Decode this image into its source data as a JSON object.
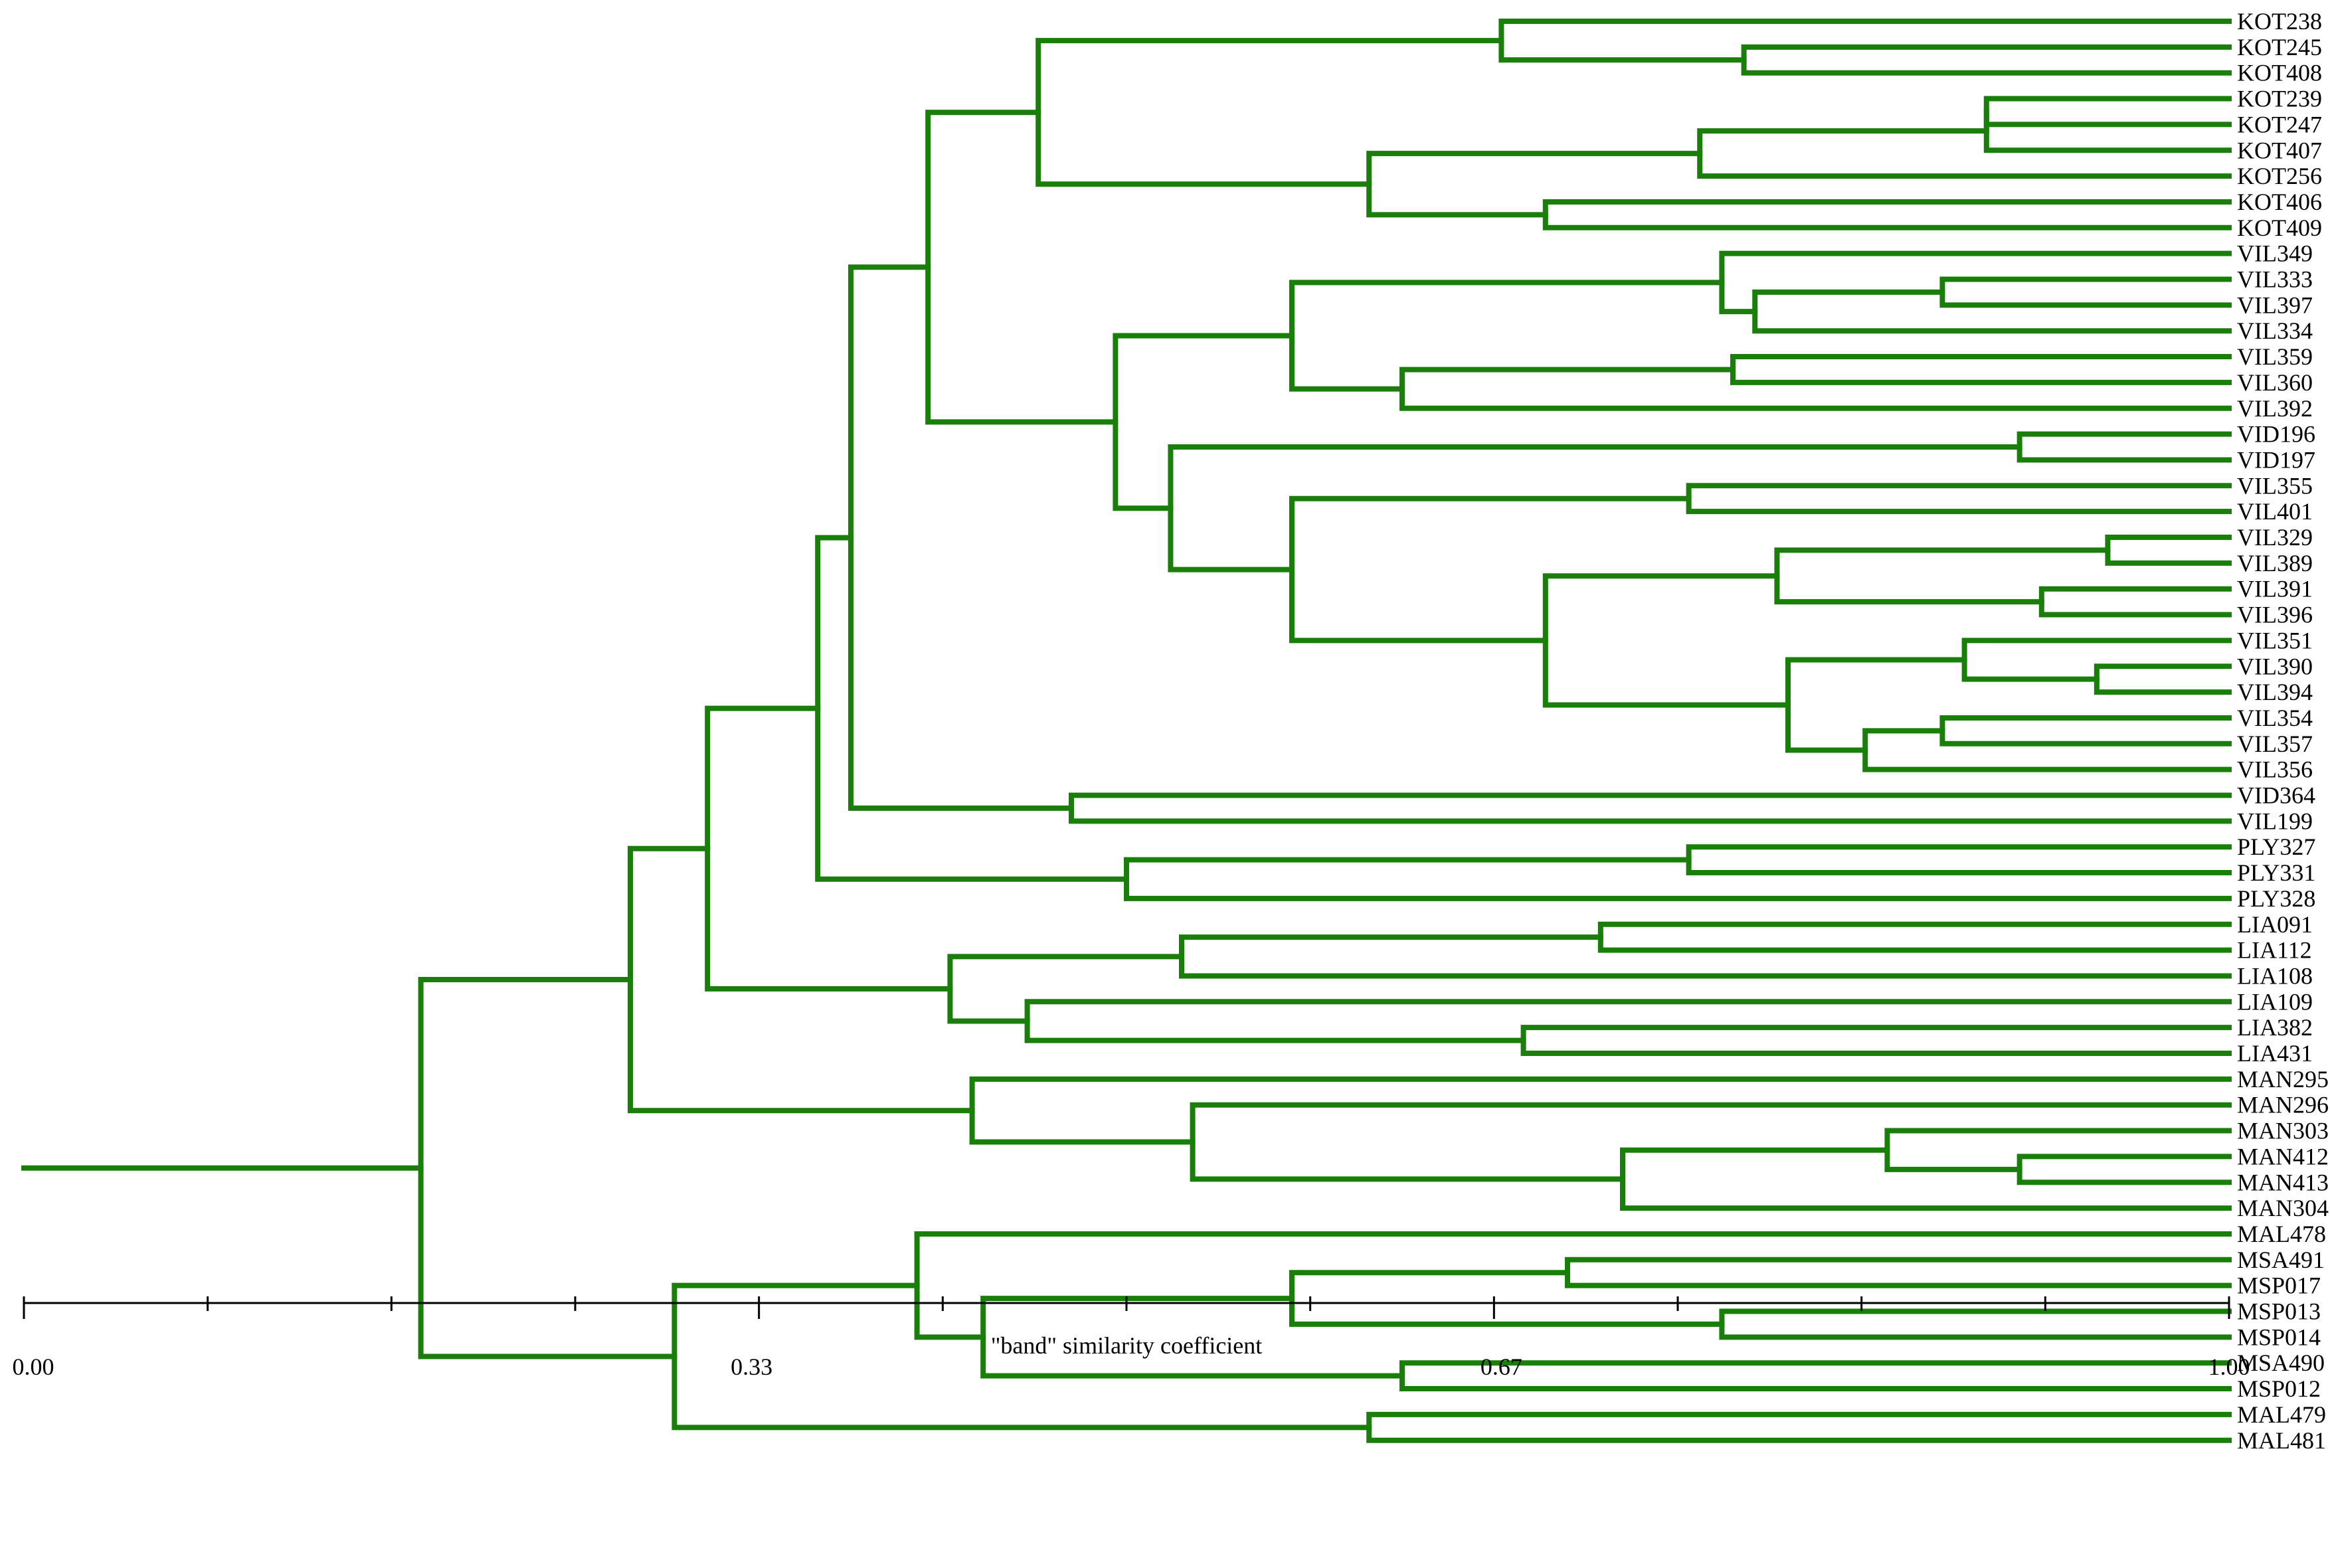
{
  "chart_data": {
    "type": "dendrogram",
    "xlabel": "\"band\" similarity coefficient",
    "xlim": [
      0.0,
      1.0
    ],
    "ticks": [
      0.0,
      0.33,
      0.67,
      1.0
    ],
    "tick_labels": [
      "0.00",
      "0.33",
      "0.67",
      "1.00"
    ],
    "minor_ticks": 12,
    "colors": {
      "branch": "#1a7f0a",
      "axis": "#000000"
    },
    "leaves": [
      "KOT238",
      "KOT245",
      "KOT408",
      "KOT239",
      "KOT247",
      "KOT407",
      "KOT256",
      "KOT406",
      "KOT409",
      "VIL349",
      "VIL333",
      "VIL397",
      "VIL334",
      "VIL359",
      "VIL360",
      "VIL392",
      "VID196",
      "VID197",
      "VIL355",
      "VIL401",
      "VIL329",
      "VIL389",
      "VIL391",
      "VIL396",
      "VIL351",
      "VIL390",
      "VIL394",
      "VIL354",
      "VIL357",
      "VIL356",
      "VID364",
      "VIL199",
      "PLY327",
      "PLY331",
      "PLY328",
      "LIA091",
      "LIA112",
      "LIA108",
      "LIA109",
      "LIA382",
      "LIA431",
      "MAN295",
      "MAN296",
      "MAN303",
      "MAN412",
      "MAN413",
      "MAN304",
      "MAL478",
      "MSA491",
      "MSP017",
      "MSP013",
      "MSP014",
      "MSA490",
      "MSP012",
      "MAL479",
      "MAL481"
    ],
    "merges": [
      {
        "a": "KOT245",
        "b": "KOT408",
        "sim": 0.78,
        "id": "n1"
      },
      {
        "a": "KOT238",
        "b": "n1",
        "sim": 0.67,
        "id": "n2"
      },
      {
        "a": "KOT239",
        "b": "KOT247",
        "sim": 0.89,
        "id": "n3"
      },
      {
        "a": "KOT407",
        "b": "n3",
        "sim": 0.89,
        "id": "n4"
      },
      {
        "a": "n4",
        "b": "KOT256",
        "sim": 0.76,
        "id": "n5"
      },
      {
        "a": "KOT406",
        "b": "KOT409",
        "sim": 0.69,
        "id": "n6"
      },
      {
        "a": "n5",
        "b": "n6",
        "sim": 0.61,
        "id": "n7"
      },
      {
        "a": "n2",
        "b": "n7",
        "sim": 0.46,
        "id": "n8"
      },
      {
        "a": "VIL333",
        "b": "VIL397",
        "sim": 0.87,
        "id": "n9"
      },
      {
        "a": "n9",
        "b": "VIL334",
        "sim": 0.785,
        "id": "n10"
      },
      {
        "a": "VIL349",
        "b": "n10",
        "sim": 0.77,
        "id": "n11"
      },
      {
        "a": "VIL359",
        "b": "VIL360",
        "sim": 0.775,
        "id": "n12"
      },
      {
        "a": "n12",
        "b": "VIL392",
        "sim": 0.625,
        "id": "n13"
      },
      {
        "a": "n11",
        "b": "n13",
        "sim": 0.575,
        "id": "n14"
      },
      {
        "a": "VID196",
        "b": "VID197",
        "sim": 0.905,
        "id": "n15"
      },
      {
        "a": "VIL355",
        "b": "VIL401",
        "sim": 0.755,
        "id": "n16"
      },
      {
        "a": "VIL329",
        "b": "VIL389",
        "sim": 0.945,
        "id": "n17"
      },
      {
        "a": "VIL391",
        "b": "VIL396",
        "sim": 0.915,
        "id": "n18"
      },
      {
        "a": "n17",
        "b": "n18",
        "sim": 0.795,
        "id": "n19"
      },
      {
        "a": "VIL390",
        "b": "VIL394",
        "sim": 0.94,
        "id": "n20"
      },
      {
        "a": "VIL351",
        "b": "n20",
        "sim": 0.88,
        "id": "n21"
      },
      {
        "a": "VIL354",
        "b": "VIL357",
        "sim": 0.87,
        "id": "n22"
      },
      {
        "a": "n22",
        "b": "VIL356",
        "sim": 0.835,
        "id": "n23"
      },
      {
        "a": "n21",
        "b": "n23",
        "sim": 0.8,
        "id": "n24"
      },
      {
        "a": "n19",
        "b": "n24",
        "sim": 0.69,
        "id": "n25"
      },
      {
        "a": "n16",
        "b": "n25",
        "sim": 0.575,
        "id": "n26"
      },
      {
        "a": "n15",
        "b": "n26",
        "sim": 0.52,
        "id": "n27"
      },
      {
        "a": "n14",
        "b": "n27",
        "sim": 0.495,
        "id": "n28"
      },
      {
        "a": "n8",
        "b": "n28",
        "sim": 0.41,
        "id": "n29"
      },
      {
        "a": "VID364",
        "b": "VIL199",
        "sim": 0.475,
        "id": "n30"
      },
      {
        "a": "n29",
        "b": "n30",
        "sim": 0.375,
        "id": "n31"
      },
      {
        "a": "PLY327",
        "b": "PLY331",
        "sim": 0.755,
        "id": "n32"
      },
      {
        "a": "n32",
        "b": "PLY328",
        "sim": 0.5,
        "id": "n33"
      },
      {
        "a": "n31",
        "b": "n33",
        "sim": 0.36,
        "id": "n34"
      },
      {
        "a": "LIA091",
        "b": "LIA112",
        "sim": 0.715,
        "id": "n35"
      },
      {
        "a": "n35",
        "b": "LIA108",
        "sim": 0.525,
        "id": "n36"
      },
      {
        "a": "LIA382",
        "b": "LIA431",
        "sim": 0.68,
        "id": "n37"
      },
      {
        "a": "LIA109",
        "b": "n37",
        "sim": 0.455,
        "id": "n38"
      },
      {
        "a": "n36",
        "b": "n38",
        "sim": 0.42,
        "id": "n39"
      },
      {
        "a": "n34",
        "b": "n39",
        "sim": 0.31,
        "id": "n40"
      },
      {
        "a": "MAN412",
        "b": "MAN413",
        "sim": 0.905,
        "id": "n41"
      },
      {
        "a": "MAN303",
        "b": "n41",
        "sim": 0.845,
        "id": "n42"
      },
      {
        "a": "n42",
        "b": "MAN304",
        "sim": 0.725,
        "id": "n43"
      },
      {
        "a": "MAN296",
        "b": "n43",
        "sim": 0.53,
        "id": "n44"
      },
      {
        "a": "MAN295",
        "b": "n44",
        "sim": 0.43,
        "id": "n45"
      },
      {
        "a": "n40",
        "b": "n45",
        "sim": 0.275,
        "id": "n46"
      },
      {
        "a": "MSA491",
        "b": "MSP017",
        "sim": 0.7,
        "id": "n47"
      },
      {
        "a": "MSP013",
        "b": "MSP014",
        "sim": 0.77,
        "id": "n48"
      },
      {
        "a": "n47",
        "b": "n48",
        "sim": 0.575,
        "id": "n49"
      },
      {
        "a": "MSA490",
        "b": "MSP012",
        "sim": 0.625,
        "id": "n50"
      },
      {
        "a": "n49",
        "b": "n50",
        "sim": 0.435,
        "id": "n51"
      },
      {
        "a": "MAL478",
        "b": "n51",
        "sim": 0.405,
        "id": "n52"
      },
      {
        "a": "MAL479",
        "b": "MAL481",
        "sim": 0.61,
        "id": "n53"
      },
      {
        "a": "n52",
        "b": "n53",
        "sim": 0.295,
        "id": "n54"
      },
      {
        "a": "n46",
        "b": "n54",
        "sim": 0.18,
        "id": "n55"
      }
    ],
    "root_stub_to": 0.0
  }
}
